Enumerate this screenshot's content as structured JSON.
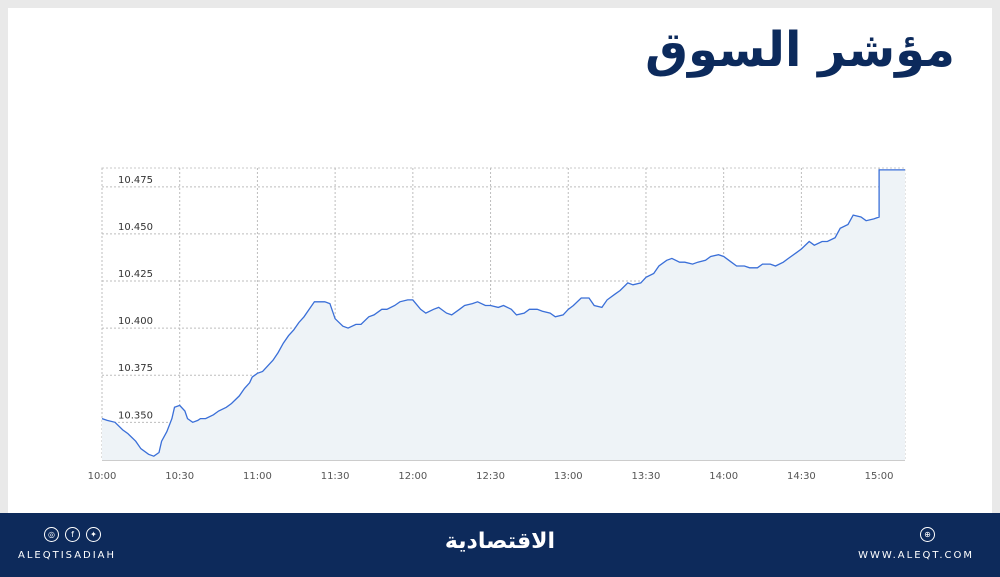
{
  "header": {
    "title": "مؤشر السوق"
  },
  "chart_data": {
    "type": "area",
    "title": "",
    "xlabel": "",
    "ylabel": "",
    "x_ticks": [
      "10:00",
      "10:30",
      "11:00",
      "11:30",
      "12:00",
      "12:30",
      "13:00",
      "13:30",
      "14:00",
      "14:30",
      "15:00"
    ],
    "y_ticks": [
      "10.350",
      "10.375",
      "10.400",
      "10.425",
      "10.450",
      "10.475"
    ],
    "ylim": [
      10.33,
      10.485
    ],
    "xlim": [
      "10:00",
      "15:10"
    ],
    "grid": true,
    "line_color": "#3a6fd8",
    "fill_color": "#eef3f7",
    "series": [
      {
        "x": [
          "10:00",
          "10:02",
          "10:05",
          "10:08",
          "10:10",
          "10:13",
          "10:15",
          "10:18",
          "10:20",
          "10:22",
          "10:23",
          "10:25",
          "10:27",
          "10:28",
          "10:30",
          "10:32",
          "10:33",
          "10:35",
          "10:37",
          "10:38",
          "10:40",
          "10:43",
          "10:45",
          "10:48",
          "10:50",
          "10:53",
          "10:55",
          "10:57",
          "10:58",
          "11:00",
          "11:02",
          "11:04",
          "11:06",
          "11:08",
          "11:10",
          "11:12",
          "11:14",
          "11:16",
          "11:18",
          "11:20",
          "11:22",
          "11:24",
          "11:26",
          "11:28",
          "11:30",
          "11:33",
          "11:35",
          "11:38",
          "11:40",
          "11:43",
          "11:45",
          "11:48",
          "11:50",
          "11:53",
          "11:55",
          "11:58",
          "12:00",
          "12:03",
          "12:05",
          "12:08",
          "12:10",
          "12:13",
          "12:15",
          "12:18",
          "12:20",
          "12:23",
          "12:25",
          "12:28",
          "12:30",
          "12:33",
          "12:35",
          "12:38",
          "12:40",
          "12:43",
          "12:45",
          "12:48",
          "12:50",
          "12:53",
          "12:55",
          "12:58",
          "13:00",
          "13:02",
          "13:05",
          "13:08",
          "13:10",
          "13:13",
          "13:15",
          "13:18",
          "13:20",
          "13:23",
          "13:25",
          "13:28",
          "13:30",
          "13:33",
          "13:35",
          "13:38",
          "13:40",
          "13:43",
          "13:45",
          "13:48",
          "13:50",
          "13:53",
          "13:55",
          "13:58",
          "14:00",
          "14:03",
          "14:05",
          "14:08",
          "14:10",
          "14:13",
          "14:15",
          "14:18",
          "14:20",
          "14:23",
          "14:25",
          "14:28",
          "14:30",
          "14:33",
          "14:35",
          "14:38",
          "14:40",
          "14:43",
          "14:45",
          "14:48",
          "14:50",
          "14:53",
          "14:55",
          "14:58",
          "15:00",
          "15:00",
          "15:05",
          "15:08",
          "15:10"
        ],
        "y": [
          10.352,
          10.351,
          10.35,
          10.346,
          10.344,
          10.34,
          10.336,
          10.333,
          10.332,
          10.334,
          10.34,
          10.345,
          10.352,
          10.358,
          10.359,
          10.356,
          10.352,
          10.35,
          10.351,
          10.352,
          10.352,
          10.354,
          10.356,
          10.358,
          10.36,
          10.364,
          10.368,
          10.371,
          10.374,
          10.376,
          10.377,
          10.38,
          10.383,
          10.387,
          10.392,
          10.396,
          10.399,
          10.403,
          10.406,
          10.41,
          10.414,
          10.414,
          10.414,
          10.413,
          10.405,
          10.401,
          10.4,
          10.402,
          10.402,
          10.406,
          10.407,
          10.41,
          10.41,
          10.412,
          10.414,
          10.415,
          10.415,
          10.41,
          10.408,
          10.41,
          10.411,
          10.408,
          10.407,
          10.41,
          10.412,
          10.413,
          10.414,
          10.412,
          10.412,
          10.411,
          10.412,
          10.41,
          10.407,
          10.408,
          10.41,
          10.41,
          10.409,
          10.408,
          10.406,
          10.407,
          10.41,
          10.412,
          10.416,
          10.416,
          10.412,
          10.411,
          10.415,
          10.418,
          10.42,
          10.424,
          10.423,
          10.424,
          10.427,
          10.429,
          10.433,
          10.436,
          10.437,
          10.435,
          10.435,
          10.434,
          10.435,
          10.436,
          10.438,
          10.439,
          10.438,
          10.435,
          10.433,
          10.433,
          10.432,
          10.432,
          10.434,
          10.434,
          10.433,
          10.435,
          10.437,
          10.44,
          10.442,
          10.446,
          10.444,
          10.446,
          10.446,
          10.448,
          10.453,
          10.455,
          10.46,
          10.459,
          10.457,
          10.458,
          10.459,
          10.484,
          10.484,
          10.484,
          10.484
        ]
      }
    ]
  },
  "footer": {
    "handle": "ALEQTISADIAH",
    "logo": "الاقتصادية",
    "site": "WWW.ALEQT.COM",
    "social_icons": [
      "instagram-icon",
      "facebook-icon",
      "twitter-icon"
    ],
    "social_glyphs": [
      "◎",
      "f",
      "✦"
    ],
    "site_icon_glyph": "⊕",
    "bg_color": "#0d2a5b"
  }
}
